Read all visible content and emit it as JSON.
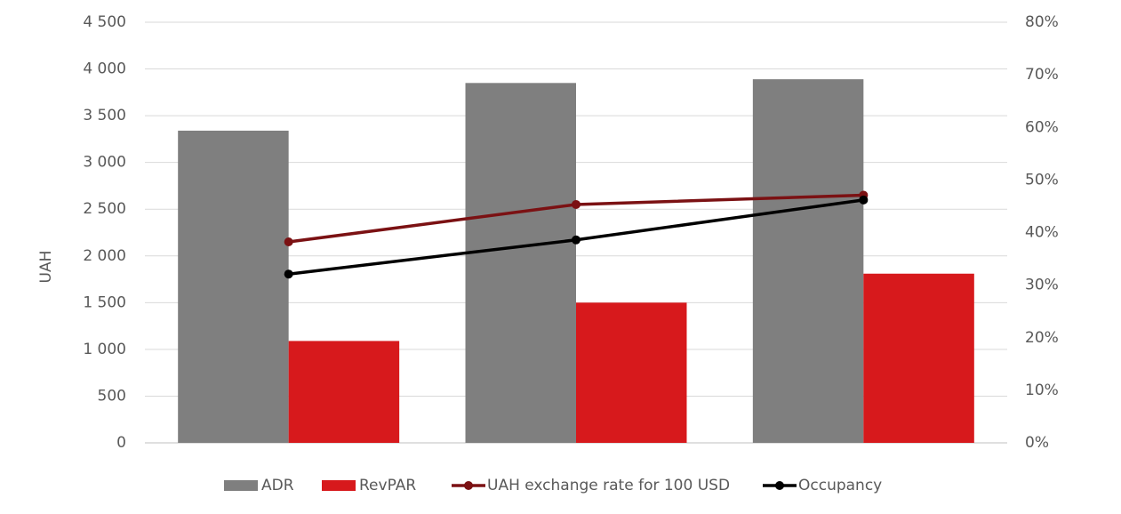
{
  "chart_data": {
    "type": "bar",
    "y_label": "UAH",
    "categories": [
      null,
      null,
      null
    ],
    "series": [
      {
        "name": "ADR",
        "type": "bar",
        "color": "#7f7f7f",
        "values": [
          3340,
          3850,
          3890
        ]
      },
      {
        "name": "RevPAR",
        "type": "bar",
        "color": "#d7191c",
        "values": [
          1090,
          1500,
          1810
        ]
      },
      {
        "name": "UAH exchange rate for 100 USD",
        "type": "line",
        "color": "#7b1113",
        "values": [
          2150,
          2550,
          2650
        ]
      },
      {
        "name": "Occupancy",
        "type": "line",
        "color": "#000000",
        "axis": "y2",
        "values": [
          32.1,
          38.6,
          46.2
        ]
      }
    ],
    "ylim": [
      0,
      4500
    ],
    "yticks": [
      0,
      500,
      {
        "value": 1000,
        "label": "1 000"
      },
      {
        "value": 1500,
        "label": "1 500"
      },
      {
        "value": 2000,
        "label": "2 000"
      },
      {
        "value": 2500,
        "label": "2 500"
      },
      {
        "value": 3000,
        "label": "3 000"
      },
      {
        "value": 3500,
        "label": "3 500"
      },
      {
        "value": 4000,
        "label": "4 000"
      },
      {
        "value": 4500,
        "label": "4 500"
      }
    ],
    "y2lim": [
      0,
      80
    ],
    "y2ticks": [
      {
        "value": 0,
        "label": "0%"
      },
      {
        "value": 10,
        "label": "10%"
      },
      {
        "value": 20,
        "label": "20%"
      },
      {
        "value": 30,
        "label": "30%"
      },
      {
        "value": 40,
        "label": "40%"
      },
      {
        "value": 50,
        "label": "50%"
      },
      {
        "value": 60,
        "label": "60%"
      },
      {
        "value": 70,
        "label": "70%"
      },
      {
        "value": 80,
        "label": "80%"
      }
    ],
    "grid": true,
    "legend": "bottom"
  }
}
